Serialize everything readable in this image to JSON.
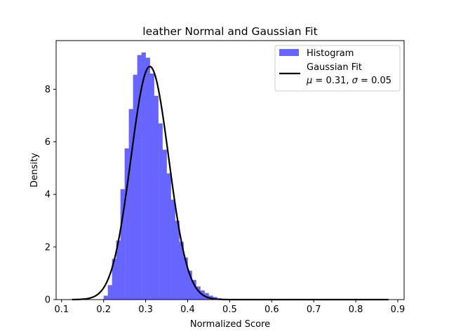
{
  "chart_data": {
    "type": "bar",
    "title": "leather Normal and Gaussian Fit",
    "xlabel": "Normalized Score",
    "ylabel": "Density",
    "xlim": [
      0.087,
      0.915
    ],
    "ylim": [
      0,
      9.85
    ],
    "xticks": [
      0.1,
      0.2,
      0.3,
      0.4,
      0.5,
      0.6,
      0.7,
      0.8,
      0.9
    ],
    "yticks": [
      0,
      2,
      4,
      6,
      8
    ],
    "grid": false,
    "legend_position": "top-right",
    "histogram": {
      "name": "Histogram",
      "color": "#6666ff",
      "bin_width": 0.01,
      "bin_edges_start": 0.2,
      "values": [
        0.15,
        0.55,
        1.55,
        2.25,
        4.2,
        5.75,
        7.25,
        8.55,
        9.3,
        9.4,
        9.2,
        8.6,
        7.75,
        6.7,
        5.7,
        4.8,
        3.8,
        3.0,
        2.2,
        1.6,
        1.1,
        0.75,
        0.5,
        0.35,
        0.25,
        0.15,
        0.1,
        0.05
      ]
    },
    "gaussian_fit": {
      "name": "Gaussian Fit",
      "name_line2": "μ = 0.31,  σ = 0.05",
      "color": "#000000",
      "mu": 0.31,
      "sigma": 0.045,
      "x_range": [
        0.125,
        0.878
      ]
    },
    "legend": {
      "histogram_label": "Histogram",
      "fit_label_line1": "Gaussian Fit",
      "fit_label_mu": "μ",
      "fit_label_mu_val": " = 0.31,  ",
      "fit_label_sigma": "σ",
      "fit_label_sigma_val": " = 0.05"
    }
  }
}
